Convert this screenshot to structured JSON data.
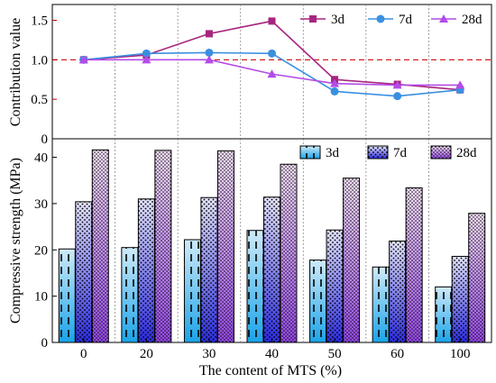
{
  "chart_data": [
    {
      "type": "line",
      "ylabel": "Contribution value",
      "ylim": [
        0,
        1.7
      ],
      "yticks": [
        0,
        0.5,
        1.0,
        1.5
      ],
      "ytick_labels": [
        "0",
        "0.5",
        "1.0",
        "1.5"
      ],
      "reference_line": 1.0,
      "categories": [
        "0",
        "20",
        "30",
        "40",
        "50",
        "60",
        "100"
      ],
      "series": [
        {
          "name": "3d",
          "marker": "square",
          "color": "#a7257f",
          "values": [
            1.0,
            1.06,
            1.33,
            1.49,
            0.75,
            0.69,
            0.62
          ]
        },
        {
          "name": "7d",
          "marker": "circle",
          "color": "#3a8fe0",
          "values": [
            1.0,
            1.08,
            1.09,
            1.08,
            0.6,
            0.54,
            0.62
          ]
        },
        {
          "name": "28d",
          "marker": "triangle",
          "color": "#b44be8",
          "values": [
            1.0,
            1.0,
            1.0,
            0.82,
            0.7,
            0.68,
            0.68
          ]
        }
      ],
      "legend_position": "top-right",
      "grid": "vertical dotted"
    },
    {
      "type": "bar",
      "xlabel": "The content of MTS (%)",
      "ylabel": "Compressive strength (MPa)",
      "ylim": [
        0,
        44
      ],
      "yticks": [
        0,
        10,
        20,
        30,
        40
      ],
      "categories": [
        "0",
        "20",
        "30",
        "40",
        "50",
        "60",
        "100"
      ],
      "series": [
        {
          "name": "3d",
          "pattern": "dashes",
          "color_top": "#c8e6f8",
          "color_bottom": "#1aa3e8",
          "values": [
            20.2,
            20.5,
            22.2,
            24.2,
            17.8,
            16.3,
            12.0
          ]
        },
        {
          "name": "7d",
          "pattern": "dots",
          "color_top": "#dcdcf8",
          "color_bottom": "#3030e0",
          "values": [
            30.4,
            31.0,
            31.3,
            31.4,
            24.3,
            21.9,
            18.6
          ]
        },
        {
          "name": "28d",
          "pattern": "dense-dots",
          "color_top": "#f0d8f8",
          "color_bottom": "#9a50e8",
          "values": [
            41.6,
            41.5,
            41.4,
            38.5,
            35.5,
            33.4,
            27.9
          ]
        }
      ],
      "legend_position": "top-right"
    }
  ]
}
